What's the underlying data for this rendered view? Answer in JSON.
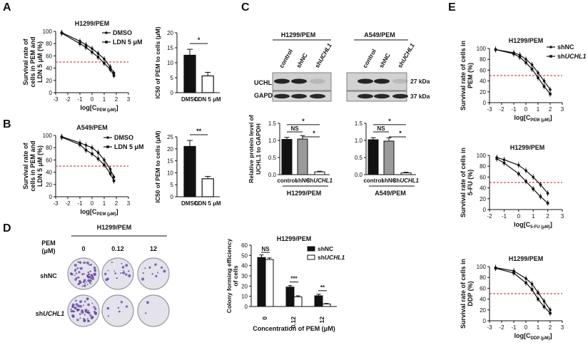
{
  "panel_letters": {
    "A": "A",
    "B": "B",
    "C": "C",
    "D": "D",
    "E": "E"
  },
  "panelA": {
    "title": "H1299/PEM",
    "ylabel_lines": [
      "Survival  rate of",
      "cells in PEM and",
      "LDN 5 μM (%)"
    ],
    "xlabel_main": "log[C",
    "xlabel_sub": "PEM (μM)",
    "xlabel_end": "]",
    "legend": [
      "DMSO",
      "LDN 5 μM"
    ],
    "bar": {
      "ylabel": "IC50 of PEM to cells (μM)",
      "categories": [
        "DMSO",
        "LDN 5 μM"
      ],
      "values": [
        12.5,
        5.6
      ],
      "errors": [
        2.0,
        1.2
      ],
      "sig": "*",
      "yticks": [
        "0",
        "5",
        "10",
        "15",
        "20"
      ]
    }
  },
  "panelB": {
    "title": "A549/PEM",
    "ylabel_lines": [
      "Survival  rate of",
      "cells in PEM and",
      "LDN 5 μM (%)"
    ],
    "xlabel_main": "log[C",
    "xlabel_sub": "PEM (μM)",
    "xlabel_end": "]",
    "legend": [
      "DMSO",
      "LDN 5 μM"
    ],
    "bar": {
      "ylabel": "IC50 of PEM to cells (μM)",
      "categories": [
        "DMSO",
        "LDN 5 μM"
      ],
      "values": [
        21,
        7.5
      ],
      "errors": [
        2.5,
        1.0
      ],
      "sig": "**",
      "yticks": [
        "0",
        "5",
        "10",
        "15",
        "20",
        "25"
      ]
    }
  },
  "panelC": {
    "blot_left_title": "H1299/PEM",
    "blot_right_title": "A549/PEM",
    "lanes": [
      "control",
      "shNC",
      "shUCHL1"
    ],
    "row_labels": [
      "UCHL1",
      "GAPDH"
    ],
    "kda": [
      "27 kDa",
      "37 kDa"
    ],
    "bar_ylabel_lines": [
      "Relative protein level of",
      "UCHL1 to GAPDH"
    ],
    "left_group": "H1299/PEM",
    "right_group": "A549/PEM",
    "left_values": [
      1.03,
      1.04,
      0.08
    ],
    "right_values": [
      1.02,
      0.98,
      0.05
    ],
    "left_sig": [
      "*",
      "NS",
      "*"
    ],
    "right_sig": [
      "*",
      "NS",
      "*"
    ],
    "yticks": [
      "0.0",
      "0.5",
      "1.0",
      "1.5"
    ]
  },
  "panelD": {
    "title": "H1299/PEM",
    "pem_label": [
      "PEM",
      "(μM)"
    ],
    "concentrations": [
      "0",
      "0.12",
      "12"
    ],
    "rows": [
      "shNC",
      "shUCHL1"
    ],
    "chart": {
      "title": "H1299/PEM",
      "ylabel_lines": [
        "Colony forming efficiency",
        "of cells"
      ],
      "xlabel": "Concentration of PEM (μM)",
      "categories": [
        "0",
        "0.12",
        "12"
      ],
      "legend": [
        "shNC",
        "shUCHL1"
      ],
      "shNC": [
        48,
        19,
        10.5
      ],
      "shUCHL1": [
        46,
        9.5,
        2.5
      ],
      "sig": [
        "NS",
        "***",
        "**"
      ],
      "yticks": [
        "0",
        "10",
        "20",
        "30",
        "40",
        "50",
        "60"
      ]
    }
  },
  "panelE": {
    "top": {
      "title": "H1299/PEM",
      "ylabel_lines": [
        "Survival  rate of cells in",
        "PEM (%)"
      ],
      "xlabel_main": "log[C",
      "xlabel_sub": "PEM (μM)",
      "xlabel_end": "]"
    },
    "mid": {
      "title": "H1299/PEM",
      "ylabel_lines": [
        "Survival  rate of cells in",
        "5-FU (%)"
      ],
      "xlabel_main": "log[C",
      "xlabel_sub": "5-FU (μM)",
      "xlabel_end": "]"
    },
    "bot": {
      "title": "H1299/PEM",
      "ylabel_lines": [
        "Survival  rate of cells in",
        "DDP (%)"
      ],
      "xlabel_main": "log[C",
      "xlabel_sub": "DDP (μM)",
      "xlabel_end": "]"
    },
    "legend": [
      "shNC",
      "shUCHL1"
    ]
  },
  "chart_data": [
    {
      "type": "line",
      "title": "H1299/PEM",
      "xlabel": "log[C PEM (μM)]",
      "ylabel": "Survival rate of cells in PEM and LDN 5 μM (%)",
      "xlim": [
        -3,
        3
      ],
      "ylim": [
        0,
        100
      ],
      "series": [
        {
          "name": "DMSO",
          "x": [
            -2.5,
            -1,
            -0.5,
            0,
            0.5,
            1,
            1.5,
            1.8
          ],
          "y": [
            98,
            84,
            78,
            72,
            64,
            55,
            42,
            32
          ]
        },
        {
          "name": "LDN 5 μM",
          "x": [
            -2.5,
            -1,
            -0.5,
            0,
            0.5,
            1,
            1.5,
            1.8
          ],
          "y": [
            97,
            80,
            74,
            66,
            58,
            48,
            38,
            28
          ]
        }
      ]
    },
    {
      "type": "bar",
      "categories": [
        "DMSO",
        "LDN 5 μM"
      ],
      "values": [
        12.5,
        5.6
      ],
      "ylabel": "IC50 of PEM to cells (μM)",
      "ylim": [
        0,
        20
      ]
    },
    {
      "type": "line",
      "title": "A549/PEM",
      "xlabel": "log[C PEM (μM)]",
      "ylabel": "Survival rate of cells in PEM and LDN 5 μM (%)",
      "xlim": [
        -3,
        3
      ],
      "ylim": [
        0,
        100
      ],
      "series": [
        {
          "name": "DMSO",
          "x": [
            -2.5,
            -1,
            -0.5,
            0,
            0.5,
            1,
            1.5,
            1.8
          ],
          "y": [
            98,
            88,
            84,
            80,
            72,
            60,
            45,
            32
          ]
        },
        {
          "name": "LDN 5 μM",
          "x": [
            -2.5,
            -1,
            -0.5,
            0,
            0.5,
            1,
            1.5,
            1.8
          ],
          "y": [
            97,
            85,
            76,
            70,
            62,
            52,
            38,
            26
          ]
        }
      ]
    },
    {
      "type": "bar",
      "categories": [
        "DMSO",
        "LDN 5 μM"
      ],
      "values": [
        21,
        7.5
      ],
      "ylabel": "IC50 of PEM to cells (μM)",
      "ylim": [
        0,
        25
      ]
    },
    {
      "type": "bar",
      "title": "H1299/PEM",
      "categories": [
        "control",
        "shNC",
        "shUCHL1"
      ],
      "values": [
        1.03,
        1.04,
        0.08
      ],
      "ylabel": "Relative protein level of UCHL1 to GAPDH",
      "ylim": [
        0,
        1.5
      ]
    },
    {
      "type": "bar",
      "title": "A549/PEM",
      "categories": [
        "control",
        "shNC",
        "shUCHL1"
      ],
      "values": [
        1.02,
        0.98,
        0.05
      ],
      "ylim": [
        0,
        1.5
      ]
    },
    {
      "type": "bar",
      "title": "H1299/PEM",
      "categories": [
        "0",
        "0.12",
        "12"
      ],
      "series": [
        {
          "name": "shNC",
          "values": [
            48,
            19,
            10.5
          ]
        },
        {
          "name": "shUCHL1",
          "values": [
            46,
            9.5,
            2.5
          ]
        }
      ],
      "xlabel": "Concentration of PEM (μM)",
      "ylabel": "Colony forming efficiency of cells",
      "ylim": [
        0,
        60
      ]
    },
    {
      "type": "line",
      "title": "H1299/PEM",
      "xlabel": "log[C PEM (μM)]",
      "ylabel": "Survival rate of cells in PEM (%)",
      "xlim": [
        -3,
        3
      ],
      "ylim": [
        0,
        100
      ],
      "series": [
        {
          "name": "shNC",
          "x": [
            -2.5,
            -1,
            -0.5,
            0,
            0.5,
            1,
            1.5,
            2
          ],
          "y": [
            98,
            92,
            88,
            80,
            70,
            55,
            40,
            24
          ]
        },
        {
          "name": "shUCHL1",
          "x": [
            -2.5,
            -1,
            -0.5,
            0,
            0.5,
            1,
            1.5,
            2
          ],
          "y": [
            98,
            90,
            84,
            74,
            62,
            46,
            30,
            16
          ]
        }
      ]
    },
    {
      "type": "line",
      "title": "H1299/PEM",
      "xlabel": "log[C 5-FU (μM)]",
      "ylabel": "Survival rate of cells in 5-FU (%)",
      "xlim": [
        -2,
        3
      ],
      "ylim": [
        0,
        100
      ],
      "series": [
        {
          "name": "shNC",
          "x": [
            -1.5,
            -1,
            0,
            0.5,
            1,
            1.5,
            2
          ],
          "y": [
            96,
            92,
            82,
            72,
            60,
            46,
            30
          ]
        },
        {
          "name": "shUCHL1",
          "x": [
            -1.5,
            -1,
            0,
            0.5,
            1,
            1.5,
            2
          ],
          "y": [
            94,
            86,
            66,
            52,
            38,
            24,
            12
          ]
        }
      ]
    },
    {
      "type": "line",
      "title": "H1299/PEM",
      "xlabel": "log[C DDP (μM)]",
      "ylabel": "Survival rate of cells in DDP (%)",
      "xlim": [
        -3,
        3
      ],
      "ylim": [
        0,
        100
      ],
      "series": [
        {
          "name": "shNC",
          "x": [
            -2.5,
            -1,
            0,
            0.5,
            1,
            1.5,
            2
          ],
          "y": [
            98,
            92,
            78,
            68,
            52,
            36,
            20
          ]
        },
        {
          "name": "shUCHL1",
          "x": [
            -2.5,
            -1,
            0,
            0.5,
            1,
            1.5,
            2
          ],
          "y": [
            97,
            88,
            70,
            58,
            40,
            26,
            14
          ]
        }
      ]
    }
  ]
}
